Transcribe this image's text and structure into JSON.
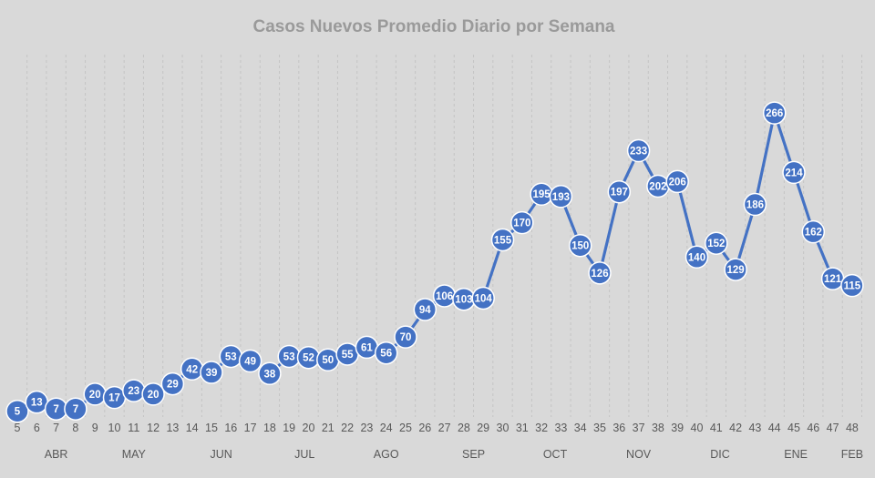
{
  "chart_data": {
    "type": "line",
    "title": "Casos Nuevos  Promedio Diario por Semana",
    "xlabel": "",
    "ylabel": "",
    "x": [
      5,
      6,
      7,
      8,
      9,
      10,
      11,
      12,
      13,
      14,
      15,
      16,
      17,
      18,
      19,
      20,
      21,
      22,
      23,
      24,
      25,
      26,
      27,
      28,
      29,
      30,
      31,
      32,
      33,
      34,
      35,
      36,
      37,
      38,
      39,
      40,
      41,
      42,
      43,
      44,
      45,
      46,
      47,
      48
    ],
    "series": [
      {
        "values": [
          5,
          13,
          7,
          7,
          20,
          17,
          23,
          20,
          29,
          42,
          39,
          53,
          49,
          38,
          53,
          52,
          50,
          55,
          61,
          56,
          70,
          94,
          106,
          103,
          104,
          155,
          170,
          195,
          193,
          150,
          126,
          197,
          233,
          202,
          206,
          140,
          152,
          129,
          186,
          266,
          214,
          162,
          121,
          115
        ]
      }
    ],
    "months": [
      {
        "label": "ABR",
        "week": 7
      },
      {
        "label": "MAY",
        "week": 11
      },
      {
        "label": "JUN",
        "week": 15.5
      },
      {
        "label": "JUL",
        "week": 19.8
      },
      {
        "label": "AGO",
        "week": 24
      },
      {
        "label": "SEP",
        "week": 28.5
      },
      {
        "label": "OCT",
        "week": 32.7
      },
      {
        "label": "NOV",
        "week": 37
      },
      {
        "label": "DIC",
        "week": 41.2
      },
      {
        "label": "ENE",
        "week": 45.1
      },
      {
        "label": "FEB",
        "week": 48
      }
    ],
    "ylim": [
      0,
      290
    ],
    "grid": "vertical dashed",
    "legend": "none",
    "colors": {
      "line": "#4472c4",
      "marker": "#4472c4",
      "marker_edge": "#ffffff",
      "background": "#d9d9d9"
    }
  }
}
